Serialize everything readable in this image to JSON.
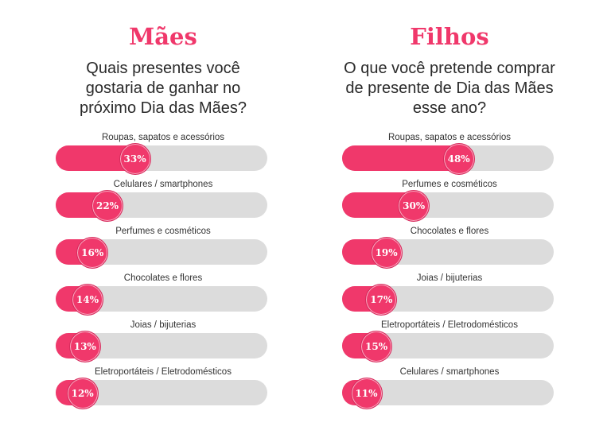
{
  "chart_data": [
    {
      "type": "bar",
      "title": "Mães",
      "subtitle": "Quais presentes você gostaria de ganhar no próximo Dia das Mães?",
      "categories": [
        "Roupas, sapatos e acessórios",
        "Celulares / smartphones",
        "Perfumes e cosméticos",
        "Chocolates e flores",
        "Joias / bijuterias",
        "Eletroportáteis / Eletrodomésticos"
      ],
      "values": [
        33,
        22,
        16,
        14,
        13,
        12
      ],
      "value_labels": [
        "33%",
        "22%",
        "16%",
        "14%",
        "13%",
        "12%"
      ],
      "xlim": [
        0,
        100
      ],
      "orientation": "horizontal"
    },
    {
      "type": "bar",
      "title": "Filhos",
      "subtitle": "O que você pretende comprar de presente de Dia das Mães esse ano?",
      "categories": [
        "Roupas, sapatos e acessórios",
        "Perfumes e cosméticos",
        "Chocolates e flores",
        "Joias / bijuterias",
        "Eletroportáteis / Eletrodomésticos",
        "Celulares / smartphones"
      ],
      "values": [
        48,
        30,
        19,
        17,
        15,
        11
      ],
      "value_labels": [
        "48%",
        "30%",
        "19%",
        "17%",
        "15%",
        "11%"
      ],
      "xlim": [
        0,
        100
      ],
      "orientation": "horizontal"
    }
  ],
  "colors": {
    "accent": "#f0386b",
    "track": "#dcdcdc"
  }
}
